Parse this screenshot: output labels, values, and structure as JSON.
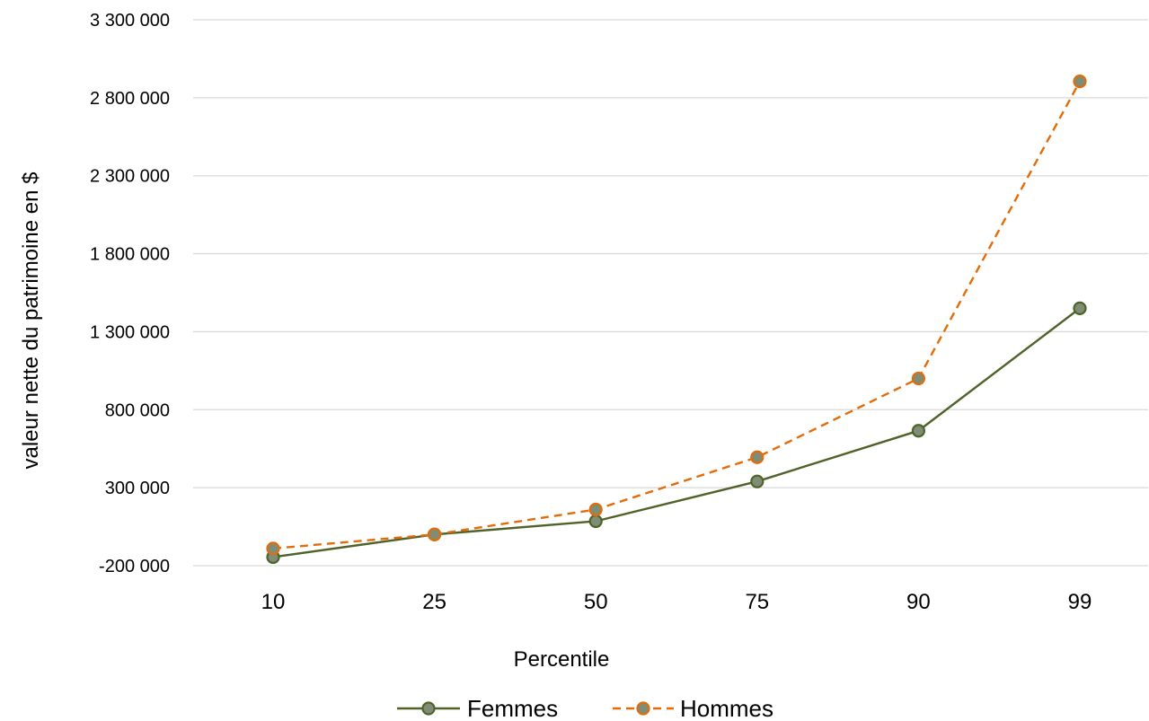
{
  "chart_data": {
    "type": "line",
    "categories": [
      "10",
      "25",
      "50",
      "75",
      "90",
      "99"
    ],
    "xlabel": "Percentile",
    "ylabel": "valeur nette du patrimoine en $",
    "ylim": [
      -200000,
      3300000
    ],
    "yticks": [
      -200000,
      300000,
      800000,
      1300000,
      1800000,
      2300000,
      2800000,
      3300000
    ],
    "ytick_labels": [
      "-200 000",
      "300 000",
      "800 000",
      "1 300 000",
      "1 800 000",
      "2 300 000",
      "2 800 000",
      "3 300 000"
    ],
    "grid": "horizontal",
    "legend_position": "bottom",
    "series": [
      {
        "name": "Femmes",
        "values": [
          -145000,
          0,
          85000,
          340000,
          665000,
          1450000
        ],
        "color": "#4f6228",
        "marker_fill": "#7f8c76",
        "dash": "solid"
      },
      {
        "name": "Hommes",
        "values": [
          -90000,
          0,
          160000,
          495000,
          1000000,
          2905000
        ],
        "color": "#e36c0a",
        "marker_fill": "#7f8c76",
        "dash": "dashed"
      }
    ]
  }
}
